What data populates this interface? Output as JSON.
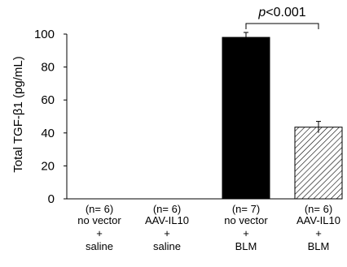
{
  "chart_data": {
    "type": "bar",
    "ylabel": "Total TGF-β1 (pg/mL)",
    "ylim": [
      0,
      100
    ],
    "yticks": [
      0,
      20,
      40,
      60,
      80,
      100
    ],
    "grid": false,
    "legend": "none",
    "groups": [
      {
        "n": "(n= 6)",
        "line1": "no vector",
        "plus": "+",
        "line2": "saline",
        "value": 0,
        "error": 0,
        "fill": "none"
      },
      {
        "n": "(n= 6)",
        "line1": "AAV-IL10",
        "plus": "+",
        "line2": "saline",
        "value": 0,
        "error": 0,
        "fill": "none"
      },
      {
        "n": "(n= 7)",
        "line1": "no vector",
        "plus": "+",
        "line2": "BLM",
        "value": 98,
        "error": 3,
        "fill": "solid"
      },
      {
        "n": "(n= 6)",
        "line1": "AAV-IL10",
        "plus": "+",
        "line2": "BLM",
        "value": 43.5,
        "error": 3.5,
        "fill": "hatched"
      }
    ],
    "annotation": {
      "p_symbol": "p",
      "text": "<0.001",
      "between": [
        2,
        3
      ]
    },
    "colors": {
      "bar": "#000000",
      "axis": "#000000",
      "hatch": "#000000"
    }
  }
}
